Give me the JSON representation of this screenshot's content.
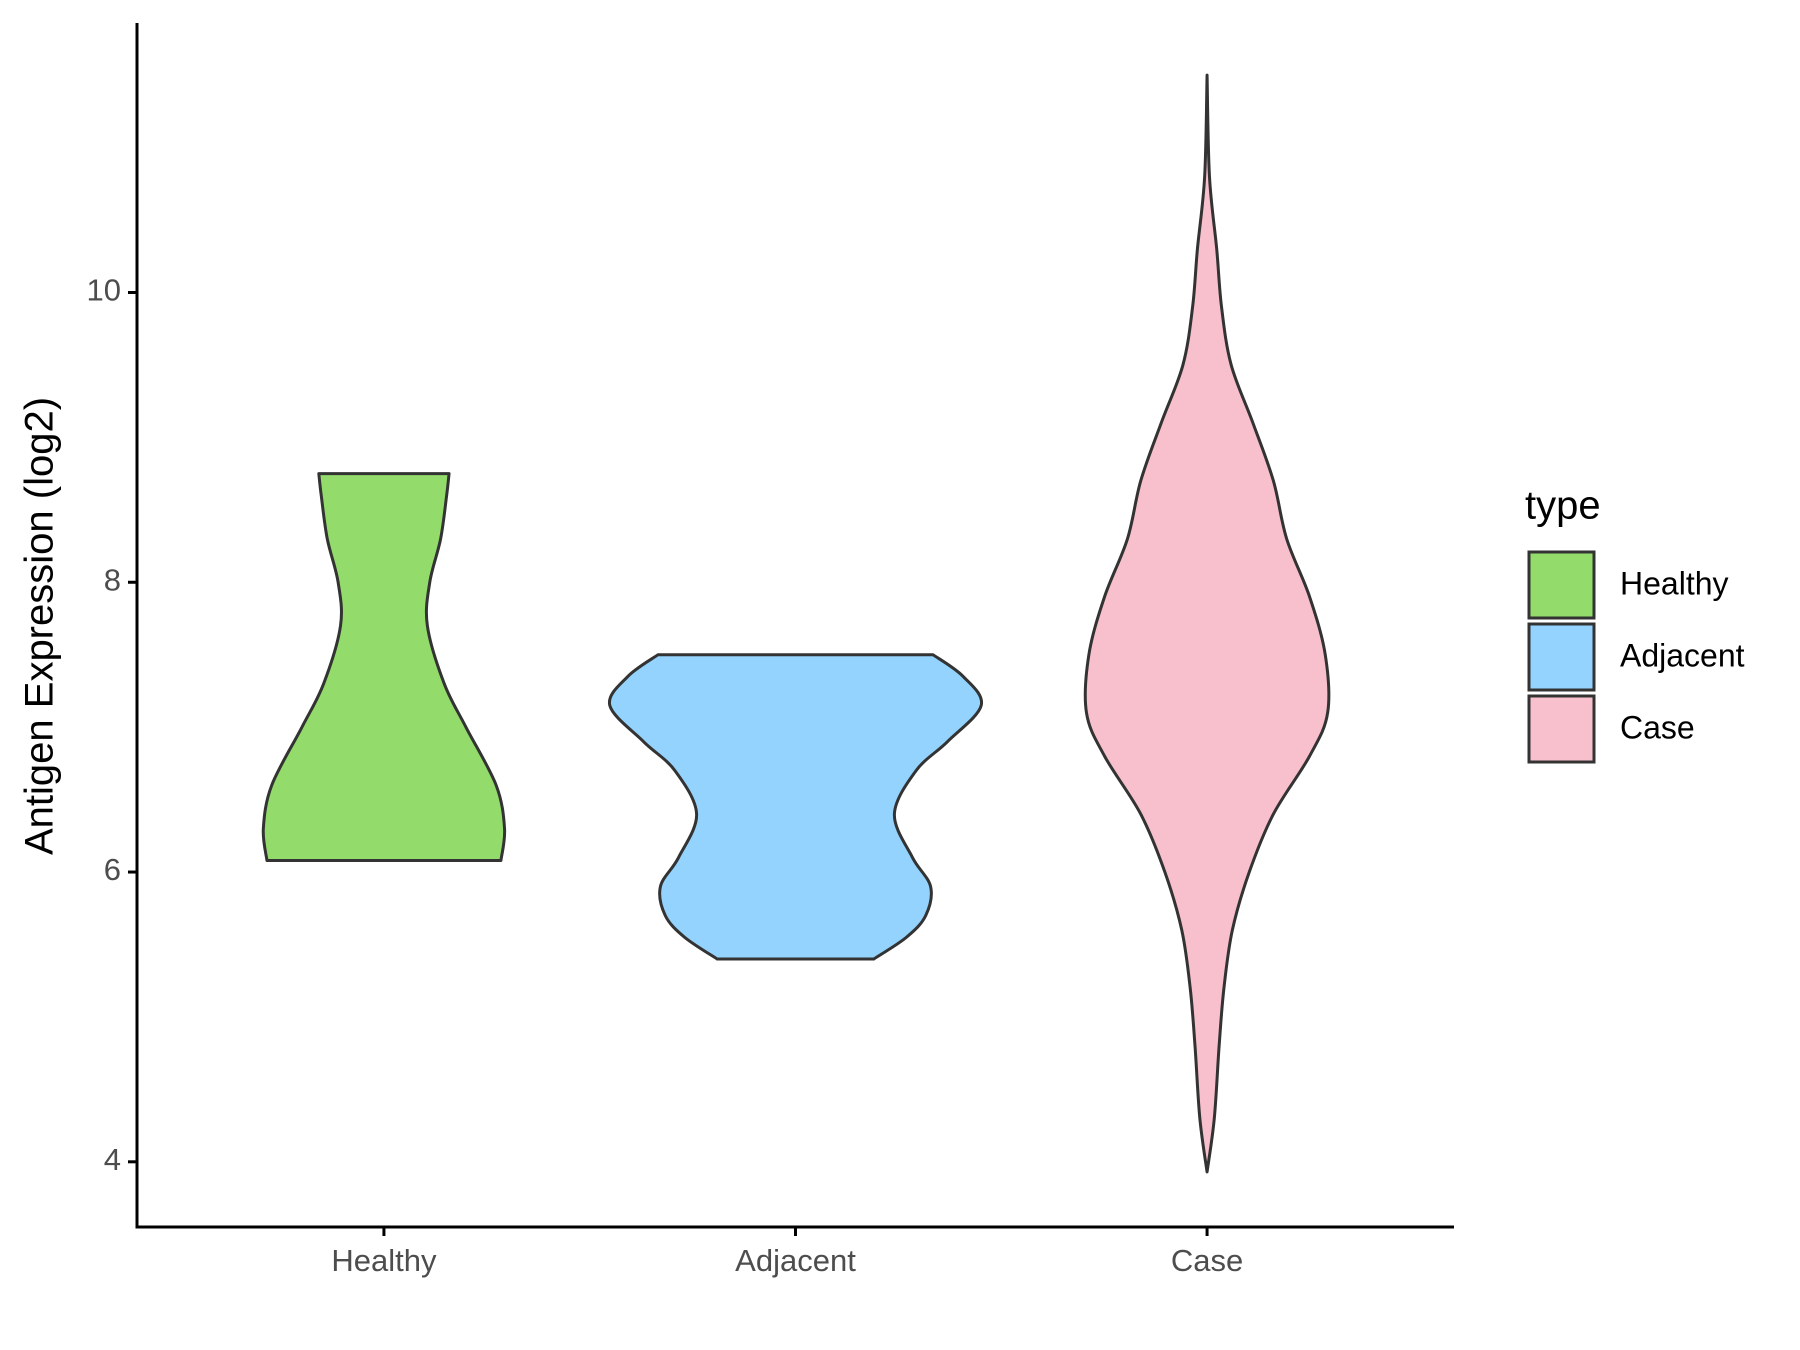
{
  "chart_data": {
    "type": "violin",
    "y_label": "Antigen Expression (log2)",
    "categories": [
      "Healthy",
      "Adjacent",
      "Case"
    ],
    "legend_title": "type",
    "ylim": [
      3.55,
      11.86
    ],
    "yticks": [
      4,
      6,
      8,
      10
    ],
    "series": [
      {
        "name": "Healthy",
        "color": "#93dc6b",
        "y": [
          6.08,
          6.3,
          6.6,
          7.0,
          7.3,
          7.7,
          8.0,
          8.3,
          8.6,
          8.75
        ],
        "density": [
          0.97,
          1.0,
          0.93,
          0.68,
          0.5,
          0.36,
          0.38,
          0.47,
          0.52,
          0.54
        ]
      },
      {
        "name": "Adjacent",
        "color": "#94d3fd",
        "y": [
          5.4,
          5.55,
          5.7,
          5.9,
          6.1,
          6.4,
          6.7,
          6.9,
          7.15,
          7.35,
          7.5
        ],
        "density": [
          0.65,
          0.92,
          1.08,
          1.12,
          0.97,
          0.82,
          1.0,
          1.26,
          1.54,
          1.39,
          1.14
        ]
      },
      {
        "name": "Case",
        "color": "#f7c0cc",
        "y": [
          3.93,
          4.3,
          4.8,
          5.2,
          5.6,
          6.0,
          6.4,
          6.8,
          7.1,
          7.5,
          7.9,
          8.3,
          8.7,
          9.1,
          9.5,
          9.9,
          10.3,
          10.8,
          11.5
        ],
        "density": [
          0,
          0.06,
          0.1,
          0.14,
          0.21,
          0.35,
          0.55,
          0.85,
          1.0,
          0.98,
          0.85,
          0.66,
          0.55,
          0.38,
          0.2,
          0.12,
          0.08,
          0.02,
          0
        ]
      }
    ]
  }
}
